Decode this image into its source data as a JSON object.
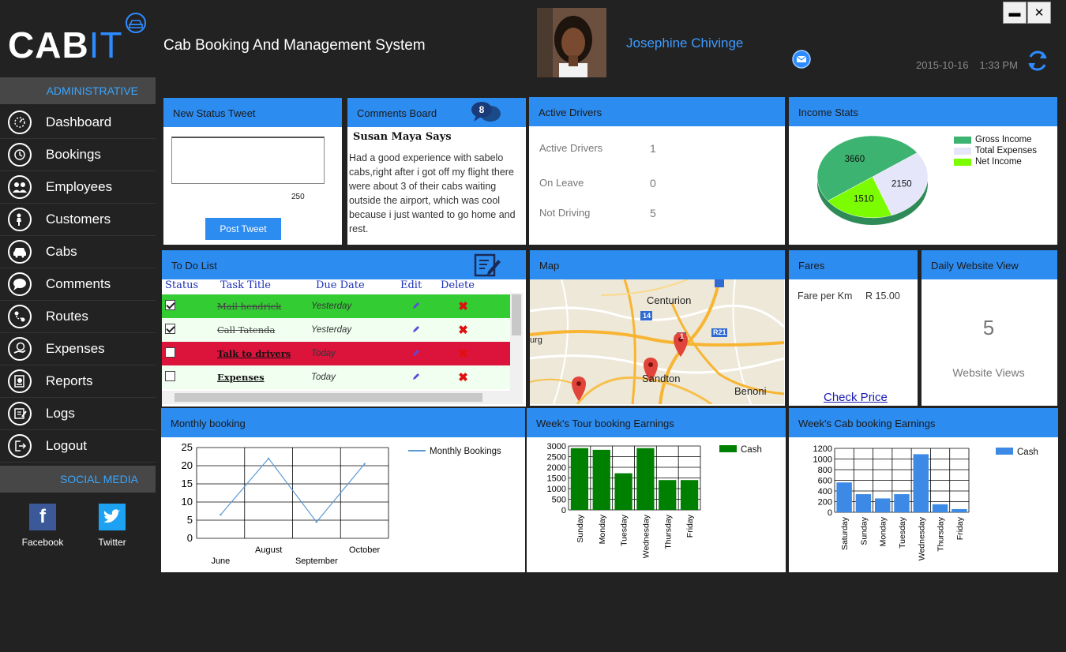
{
  "app": {
    "logo_cab": "CAB",
    "logo_it": "IT",
    "title": "Cab Booking And Management System",
    "user_name": "Josephine Chivinge",
    "date": "2015-10-16",
    "time": "1:33 PM",
    "window_min": "▬",
    "window_close": "✕"
  },
  "sidebar": {
    "section_admin": "ADMINISTRATIVE",
    "section_social": "SOCIAL MEDIA",
    "items": [
      {
        "label": "Dashboard",
        "icon": "dashboard-icon"
      },
      {
        "label": "Bookings",
        "icon": "bookings-icon"
      },
      {
        "label": "Employees",
        "icon": "employees-icon"
      },
      {
        "label": "Customers",
        "icon": "customers-icon"
      },
      {
        "label": "Cabs",
        "icon": "cab-icon"
      },
      {
        "label": "Comments",
        "icon": "comments-icon"
      },
      {
        "label": "Routes",
        "icon": "routes-icon"
      },
      {
        "label": "Expenses",
        "icon": "expenses-icon"
      },
      {
        "label": "Reports",
        "icon": "reports-icon"
      },
      {
        "label": "Logs",
        "icon": "logs-icon"
      },
      {
        "label": "Logout",
        "icon": "logout-icon"
      }
    ],
    "social": [
      {
        "label": "Facebook",
        "icon": "facebook-icon"
      },
      {
        "label": "Twitter",
        "icon": "twitter-icon"
      }
    ]
  },
  "status_tweet": {
    "title": "New Status Tweet",
    "text_value": "",
    "char_count": "250",
    "button_label": "Post Tweet"
  },
  "comments": {
    "title": "Comments Board",
    "badge_count": "8",
    "author": "Susan Maya Says",
    "text": "Had a good  experience with sabelo cabs,right after i got off my flight there were about 3 of their cabs waiting outside the airport, which was cool because i just wanted to go home and rest."
  },
  "active_drivers": {
    "title": "Active Drivers",
    "rows": [
      {
        "label": "Active Drivers",
        "value": "1"
      },
      {
        "label": "On Leave",
        "value": "0"
      },
      {
        "label": "Not Driving",
        "value": "5"
      }
    ]
  },
  "income_stats": {
    "title": "Income Stats",
    "legend": [
      {
        "label": "Gross Income",
        "color": "#3cb371"
      },
      {
        "label": "Total Expenses",
        "color": "#e6e6fa"
      },
      {
        "label": "Net Income",
        "color": "#7cfc00"
      }
    ]
  },
  "todo": {
    "title": "To Do List",
    "headers": {
      "status": "Status",
      "task": "Task Title",
      "due": "Due Date",
      "edit": "Edit",
      "delete": "Delete"
    },
    "rows": [
      {
        "task": "Mail hendrick",
        "due": "Yesterday",
        "done": true,
        "bg": "#33cc33"
      },
      {
        "task": "Call Tatenda",
        "due": "Yesterday",
        "done": true,
        "bg": "#f0fff0"
      },
      {
        "task": "Talk to drivers",
        "due": "Today",
        "done": false,
        "bg": "#dc143c"
      },
      {
        "task": "Expenses",
        "due": "Today",
        "done": false,
        "bg": "#f0fff0"
      }
    ]
  },
  "map": {
    "title": "Map",
    "places": [
      "Centurion",
      "Sandton",
      "Benoni",
      "urg"
    ],
    "road_shields": [
      "14",
      "1",
      "R21"
    ]
  },
  "fares": {
    "title": "Fares",
    "label": "Fare per Km",
    "value": "R 15.00",
    "link": "Check Price"
  },
  "website_view": {
    "title": "Daily Website View",
    "value": "5",
    "label": "Website Views"
  },
  "monthly_booking": {
    "title": "Monthly booking"
  },
  "tour_earnings": {
    "title": "Week's Tour booking Earnings"
  },
  "cab_earnings": {
    "title": "Week's Cab booking Earnings"
  },
  "chart_data": [
    {
      "type": "pie",
      "categories": [
        "Gross Income",
        "Total Expenses",
        "Net Income"
      ],
      "values": [
        3660,
        2150,
        1510
      ],
      "colors": [
        "#3cb371",
        "#e6e6fa",
        "#7cfc00"
      ],
      "legend": "top-right"
    },
    {
      "type": "line",
      "categories": [
        "June",
        "August",
        "September",
        "October"
      ],
      "series": [
        {
          "name": "Monthly Bookings",
          "values": [
            6.5,
            22,
            4.5,
            20.5
          ],
          "color": "#5b9bd5"
        }
      ],
      "yticks": [
        0,
        5,
        10,
        15,
        20,
        25
      ],
      "ylim": [
        0,
        25
      ],
      "grid": true,
      "legend": "top-right"
    },
    {
      "type": "bar",
      "categories": [
        "Sunday",
        "Monday",
        "Tuesday",
        "Wednesday",
        "Thursday",
        "Friday"
      ],
      "series": [
        {
          "name": "Cash",
          "values": [
            2900,
            2820,
            1720,
            2900,
            1400,
            1400
          ],
          "color": "#008000"
        }
      ],
      "yticks": [
        0,
        500,
        1000,
        1500,
        2000,
        2500,
        3000
      ],
      "ylim": [
        0,
        3000
      ],
      "grid": true,
      "legend": "top-right"
    },
    {
      "type": "bar",
      "categories": [
        "Saturday",
        "Sunday",
        "Monday",
        "Tuesday",
        "Wednesday",
        "Thursday",
        "Friday"
      ],
      "series": [
        {
          "name": "Cash",
          "values": [
            560,
            340,
            260,
            340,
            1090,
            150,
            60
          ],
          "color": "#3c8ae6"
        }
      ],
      "yticks": [
        0,
        200,
        400,
        600,
        800,
        1000,
        1200
      ],
      "ylim": [
        0,
        1200
      ],
      "grid": true,
      "legend": "top-right"
    }
  ]
}
